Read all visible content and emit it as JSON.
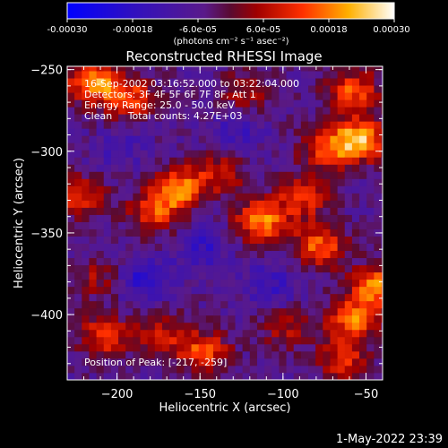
{
  "colorbar": {
    "tick_labels": [
      "-0.00030",
      "-0.00018",
      "-6.0e-05",
      "6.0e-05",
      "0.00018",
      "0.00030"
    ],
    "unit_label": "(photons cm⁻² s⁻¹ asec⁻²)",
    "colors": [
      "#0000ff",
      "#3010c0",
      "#5a1a8a",
      "#7a0000",
      "#e81000",
      "#ff8c00",
      "#ffff80",
      "#ffffff"
    ]
  },
  "overlay": {
    "line1": "16-Sep-2002 03:16:52.000 to 03:22:04.000",
    "line2": "Detectors: 3F 4F 5F 6F 7F 8F, Att 1",
    "line3": "Energy Range: 25.0 - 50.0 keV",
    "line4": "Clean     Total counts: 4.27E+03",
    "peak": "Position of Peak: [-217, -259]"
  },
  "footer": {
    "timestamp": "1-May-2022 23:39"
  },
  "chart_data": {
    "type": "heatmap",
    "title": "Reconstructed RHESSI Image",
    "xlabel": "Heliocentric X (arcsec)",
    "ylabel": "Heliocentric Y (arcsec)",
    "xlim": [
      -230,
      -40
    ],
    "ylim": [
      -440,
      -248
    ],
    "xticks": [
      -200,
      -150,
      -100,
      -50
    ],
    "yticks": [
      -250,
      -300,
      -350,
      -400
    ],
    "x_tick_labels": [
      "−200",
      "−150",
      "−100",
      "−50"
    ],
    "y_tick_labels": [
      "−250",
      "−300",
      "−350",
      "−400"
    ],
    "cmin": -0.0003,
    "cmax": 0.0003,
    "hotspots": [
      {
        "x": -217,
        "y": -259,
        "v": 0.00026
      },
      {
        "x": -195,
        "y": -270,
        "v": 0.0002
      },
      {
        "x": -165,
        "y": -325,
        "v": 0.00024
      },
      {
        "x": -180,
        "y": -340,
        "v": 0.00018
      },
      {
        "x": -140,
        "y": -315,
        "v": 0.00014
      },
      {
        "x": -115,
        "y": -345,
        "v": 0.00025
      },
      {
        "x": -90,
        "y": -330,
        "v": 0.00018
      },
      {
        "x": -75,
        "y": -300,
        "v": 0.0002
      },
      {
        "x": -55,
        "y": -295,
        "v": 0.00027
      },
      {
        "x": -60,
        "y": -265,
        "v": 0.0002
      },
      {
        "x": -125,
        "y": -265,
        "v": 0.00012
      },
      {
        "x": -80,
        "y": -360,
        "v": 0.00022
      },
      {
        "x": -45,
        "y": -385,
        "v": 0.00026
      },
      {
        "x": -60,
        "y": -405,
        "v": 0.00022
      },
      {
        "x": -65,
        "y": -430,
        "v": 0.00016
      },
      {
        "x": -150,
        "y": -425,
        "v": 0.0002
      },
      {
        "x": -175,
        "y": -415,
        "v": 0.00014
      },
      {
        "x": -210,
        "y": -415,
        "v": 0.00018
      },
      {
        "x": -225,
        "y": -330,
        "v": 0.00016
      },
      {
        "x": -215,
        "y": -380,
        "v": 0.0001
      },
      {
        "x": -100,
        "y": -410,
        "v": 0.00012
      },
      {
        "x": -150,
        "y": -360,
        "v": -0.0001
      },
      {
        "x": -185,
        "y": -380,
        "v": -0.00014
      },
      {
        "x": -130,
        "y": -290,
        "v": -8e-05
      },
      {
        "x": -200,
        "y": -300,
        "v": -6e-05
      },
      {
        "x": -110,
        "y": -385,
        "v": -0.0001
      }
    ]
  }
}
